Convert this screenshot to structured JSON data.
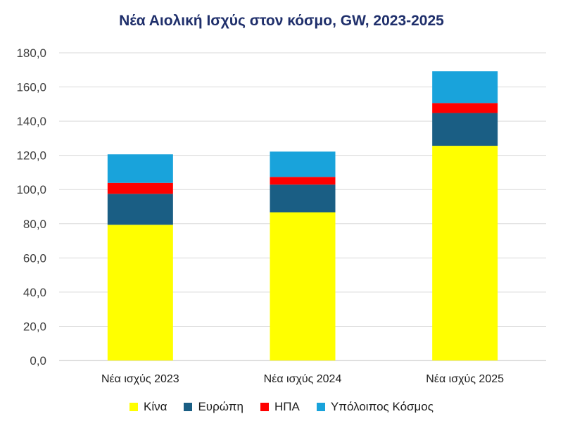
{
  "chart_data": {
    "type": "bar",
    "stacked": true,
    "title": "Νέα Αιολική Ισχύς στον κόσμο, GW, 2023-2025",
    "categories": [
      "Νέα ισχύς 2023",
      "Νέα ισχύς 2024",
      "Νέα ισχύς 2025"
    ],
    "series": [
      {
        "name": "Κίνα",
        "color": "#ffff00",
        "values": [
          79.4,
          86.7,
          125.6
        ]
      },
      {
        "name": "Ευρώπη",
        "color": "#1a5e84",
        "values": [
          18.1,
          16.2,
          19.2
        ]
      },
      {
        "name": "ΗΠΑ",
        "color": "#ff0000",
        "values": [
          6.4,
          4.5,
          5.8
        ]
      },
      {
        "name": "Υπόλοιπος Κόσμος",
        "color": "#19a3db",
        "values": [
          16.7,
          14.8,
          18.6
        ]
      }
    ],
    "ylim": [
      0,
      180
    ],
    "yticks": [
      "0,0",
      "20,0",
      "40,0",
      "60,0",
      "80,0",
      "100,0",
      "120,0",
      "140,0",
      "160,0",
      "180,0"
    ],
    "grid": true,
    "legend_position": "bottom"
  }
}
